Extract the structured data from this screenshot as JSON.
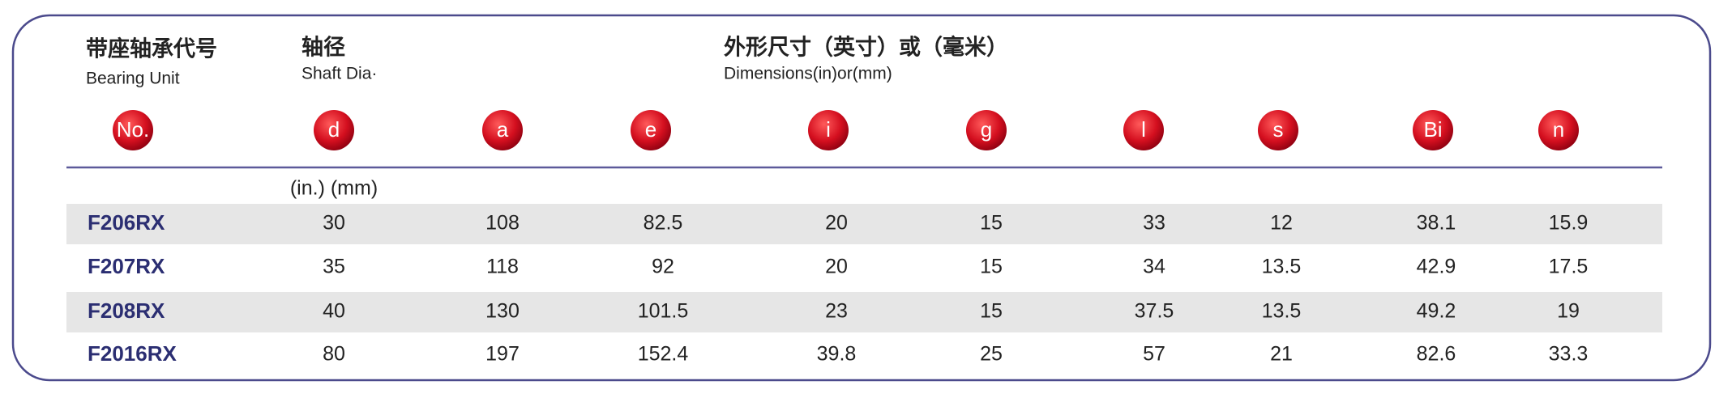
{
  "header": {
    "unit_cn": "带座轴承代号",
    "unit_en": "Bearing Unit",
    "shaft_cn": "轴径",
    "shaft_en": "Shaft Dia·",
    "dims_cn": "外形尺寸（英寸）或（毫米）",
    "dims_en": "Dimensions(in)or(mm)"
  },
  "table": {
    "columns": [
      "No.",
      "d",
      "a",
      "e",
      "i",
      "g",
      "l",
      "s",
      "Bi",
      "n"
    ],
    "units": "(in.) (mm)",
    "rows": [
      [
        "F206RX",
        30,
        108,
        82.5,
        20,
        15,
        33,
        12,
        38.1,
        15.9
      ],
      [
        "F207RX",
        35,
        118,
        92,
        20,
        15,
        34,
        13.5,
        42.9,
        17.5
      ],
      [
        "F208RX",
        40,
        130,
        101.5,
        23,
        15,
        37.5,
        13.5,
        49.2,
        19
      ],
      [
        "F2016RX",
        80,
        197,
        152.4,
        39.8,
        25,
        57,
        21,
        82.6,
        33.3
      ]
    ]
  }
}
